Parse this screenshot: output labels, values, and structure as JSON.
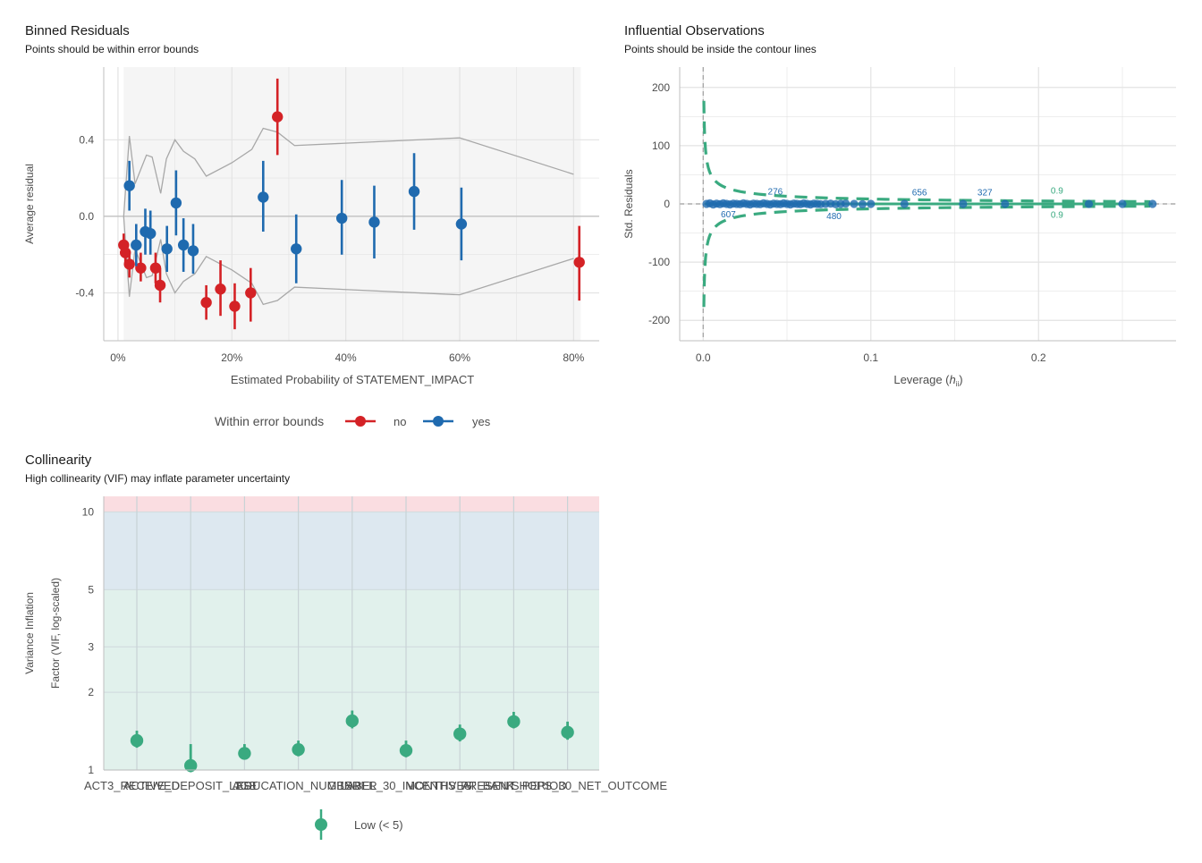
{
  "colors": {
    "no": "#d42226",
    "yes": "#1f6aaf",
    "green": "#3aaa80",
    "grid": "#e3e3e3",
    "bound": "#a8a8a8",
    "zero": "#bdbdbd",
    "band_bg": "#f5f5f5",
    "vif_low": "#e1f1ec",
    "vif_mod": "#dde8f0",
    "vif_high": "#fadde1"
  },
  "chart_data": [
    {
      "type": "scatter",
      "title": "Binned Residuals",
      "subtitle": "Points should be within error bounds",
      "xlabel": "Estimated Probability of STATEMENT_IMPACT",
      "ylabel": "Average residual",
      "xlim": [
        -0.025,
        0.845
      ],
      "ylim": [
        -0.65,
        0.78
      ],
      "x_ticks": [
        0,
        0.2,
        0.4,
        0.6,
        0.8
      ],
      "x_tick_labels": [
        "0%",
        "20%",
        "40%",
        "60%",
        "80%"
      ],
      "y_ticks": [
        -0.4,
        0,
        0.4
      ],
      "y_tick_labels": [
        "-0.4",
        "0.0",
        "0.4"
      ],
      "shaded_x_range": [
        0.01,
        0.8
      ],
      "legend_title": "Within error bounds",
      "legend": [
        "no",
        "yes"
      ],
      "legend_position": "bottom",
      "bounds_upper": {
        "x": [
          0.01,
          0.02,
          0.03,
          0.05,
          0.06,
          0.075,
          0.085,
          0.1,
          0.115,
          0.135,
          0.155,
          0.2,
          0.235,
          0.255,
          0.28,
          0.31,
          0.6,
          0.8
        ],
        "y": [
          0.0,
          0.42,
          0.17,
          0.32,
          0.31,
          0.12,
          0.3,
          0.4,
          0.34,
          0.3,
          0.21,
          0.28,
          0.35,
          0.46,
          0.44,
          0.37,
          0.41,
          0.22
        ]
      },
      "bounds_lower": {
        "x": [
          0.01,
          0.02,
          0.03,
          0.05,
          0.06,
          0.075,
          0.085,
          0.1,
          0.115,
          0.135,
          0.155,
          0.2,
          0.235,
          0.255,
          0.28,
          0.31,
          0.6,
          0.8
        ],
        "y": [
          0.0,
          -0.42,
          -0.17,
          -0.32,
          -0.31,
          -0.12,
          -0.3,
          -0.4,
          -0.34,
          -0.3,
          -0.21,
          -0.28,
          -0.35,
          -0.46,
          -0.44,
          -0.37,
          -0.41,
          -0.22
        ]
      },
      "series": [
        {
          "name": "no",
          "points": [
            {
              "x": 0.01,
              "y": -0.15,
              "lo": -0.21,
              "hi": -0.09
            },
            {
              "x": 0.013,
              "y": -0.19,
              "lo": -0.25,
              "hi": -0.13
            },
            {
              "x": 0.02,
              "y": -0.25,
              "lo": -0.32,
              "hi": -0.18
            },
            {
              "x": 0.04,
              "y": -0.27,
              "lo": -0.34,
              "hi": -0.19
            },
            {
              "x": 0.066,
              "y": -0.27,
              "lo": -0.35,
              "hi": -0.19
            },
            {
              "x": 0.074,
              "y": -0.36,
              "lo": -0.45,
              "hi": -0.27
            },
            {
              "x": 0.155,
              "y": -0.45,
              "lo": -0.54,
              "hi": -0.36
            },
            {
              "x": 0.18,
              "y": -0.38,
              "lo": -0.52,
              "hi": -0.23
            },
            {
              "x": 0.205,
              "y": -0.47,
              "lo": -0.59,
              "hi": -0.35
            },
            {
              "x": 0.233,
              "y": -0.4,
              "lo": -0.55,
              "hi": -0.27
            },
            {
              "x": 0.28,
              "y": 0.52,
              "lo": 0.32,
              "hi": 0.72
            },
            {
              "x": 0.81,
              "y": -0.24,
              "lo": -0.44,
              "hi": -0.05
            }
          ]
        },
        {
          "name": "yes",
          "points": [
            {
              "x": 0.02,
              "y": 0.16,
              "lo": 0.03,
              "hi": 0.29
            },
            {
              "x": 0.032,
              "y": -0.15,
              "lo": -0.26,
              "hi": -0.04
            },
            {
              "x": 0.048,
              "y": -0.08,
              "lo": -0.2,
              "hi": 0.04
            },
            {
              "x": 0.057,
              "y": -0.09,
              "lo": -0.2,
              "hi": 0.03
            },
            {
              "x": 0.086,
              "y": -0.17,
              "lo": -0.29,
              "hi": -0.05
            },
            {
              "x": 0.102,
              "y": 0.07,
              "lo": -0.1,
              "hi": 0.24
            },
            {
              "x": 0.115,
              "y": -0.15,
              "lo": -0.29,
              "hi": -0.01
            },
            {
              "x": 0.132,
              "y": -0.18,
              "lo": -0.3,
              "hi": -0.04
            },
            {
              "x": 0.255,
              "y": 0.1,
              "lo": -0.08,
              "hi": 0.29
            },
            {
              "x": 0.313,
              "y": -0.17,
              "lo": -0.35,
              "hi": 0.01
            },
            {
              "x": 0.393,
              "y": -0.01,
              "lo": -0.2,
              "hi": 0.19
            },
            {
              "x": 0.45,
              "y": -0.03,
              "lo": -0.22,
              "hi": 0.16
            },
            {
              "x": 0.52,
              "y": 0.13,
              "lo": -0.07,
              "hi": 0.33
            },
            {
              "x": 0.603,
              "y": -0.04,
              "lo": -0.23,
              "hi": 0.15
            }
          ]
        }
      ]
    },
    {
      "type": "scatter",
      "title": "Influential Observations",
      "subtitle": "Points should be inside the contour lines",
      "xlabel": "Leverage (",
      "xlabel_tail": ")",
      "xlabel_var": "h",
      "xlabel_sub": "ii",
      "ylabel": "Std. Residuals",
      "xlim": [
        -0.014,
        0.282
      ],
      "ylim": [
        -235,
        235
      ],
      "x_ticks": [
        0,
        0.1,
        0.2
      ],
      "x_tick_labels": [
        "0.0",
        "0.1",
        "0.2"
      ],
      "y_ticks": [
        -200,
        -100,
        0,
        100,
        200
      ],
      "y_tick_labels": [
        "-200",
        "-100",
        "0",
        "100",
        "200"
      ],
      "contour_level": "0.9",
      "points_x": [
        0.002,
        0.004,
        0.006,
        0.008,
        0.01,
        0.012,
        0.014,
        0.016,
        0.018,
        0.02,
        0.022,
        0.024,
        0.026,
        0.028,
        0.03,
        0.032,
        0.034,
        0.036,
        0.038,
        0.04,
        0.042,
        0.044,
        0.046,
        0.048,
        0.05,
        0.052,
        0.054,
        0.056,
        0.058,
        0.06,
        0.062,
        0.064,
        0.066,
        0.068,
        0.07,
        0.073,
        0.076,
        0.079,
        0.082,
        0.085,
        0.09,
        0.095,
        0.1,
        0.12,
        0.155,
        0.18,
        0.23,
        0.25,
        0.268
      ],
      "points_y": [
        0,
        1,
        -1,
        0.5,
        -0.5,
        1,
        0,
        -1,
        0.5,
        0,
        -0.5,
        1,
        0,
        -1,
        0.5,
        0,
        -0.5,
        1,
        0,
        -1,
        0.5,
        0,
        -0.5,
        1,
        0,
        -1,
        0.5,
        0,
        -0.5,
        1,
        0,
        -1,
        0.5,
        0,
        -0.5,
        0,
        0.5,
        -0.5,
        0,
        0.5,
        0,
        -0.5,
        0,
        0,
        0,
        0,
        0,
        0,
        0
      ],
      "labels": [
        {
          "text": "276",
          "x": 0.043,
          "y": 22
        },
        {
          "text": "607",
          "x": 0.015,
          "y": -17
        },
        {
          "text": "480",
          "x": 0.078,
          "y": -20
        },
        {
          "text": "656",
          "x": 0.129,
          "y": 21
        },
        {
          "text": "327",
          "x": 0.168,
          "y": 21
        },
        {
          "text": "0.9",
          "x": 0.211,
          "y": 24
        },
        {
          "text": "0.9",
          "x": 0.211,
          "y": -18
        }
      ]
    },
    {
      "type": "scatter",
      "title": "Collinearity",
      "subtitle": "High collinearity (VIF) may inflate parameter uncertainty",
      "ylabel": "Variance Inflation",
      "ylabel2": "Factor (VIF, log-scaled)",
      "y_scale": "log",
      "ylim": [
        1,
        11.5
      ],
      "y_ticks": [
        1,
        2,
        3,
        5,
        10
      ],
      "y_tick_labels": [
        "1",
        "2",
        "3",
        "5",
        "10"
      ],
      "bands": [
        {
          "name": "low",
          "from": 1,
          "to": 5
        },
        {
          "name": "moderate",
          "from": 5,
          "to": 10
        },
        {
          "name": "high",
          "from": 10,
          "to": 11.5
        }
      ],
      "categories": [
        "ACT3_RECEIVED",
        "ACTIVE_DEPOSIT_LAST",
        "AGE",
        "EDUCATION_NUMBER",
        "GENDER",
        "LABEL_30_INCENTIVES",
        "MONTHS_AT_BANK",
        "PRESENT_PERIOD",
        "SHOPS_30_NET_OUTCOME"
      ],
      "values": [
        1.3,
        1.04,
        1.16,
        1.2,
        1.55,
        1.19,
        1.38,
        1.54,
        1.4
      ],
      "ci_lo": [
        1.22,
        0.98,
        1.1,
        1.13,
        1.45,
        1.12,
        1.29,
        1.45,
        1.31
      ],
      "ci_hi": [
        1.42,
        1.26,
        1.26,
        1.3,
        1.7,
        1.3,
        1.5,
        1.68,
        1.54
      ],
      "legend": [
        "Low (< 5)"
      ],
      "legend_position": "bottom"
    }
  ]
}
